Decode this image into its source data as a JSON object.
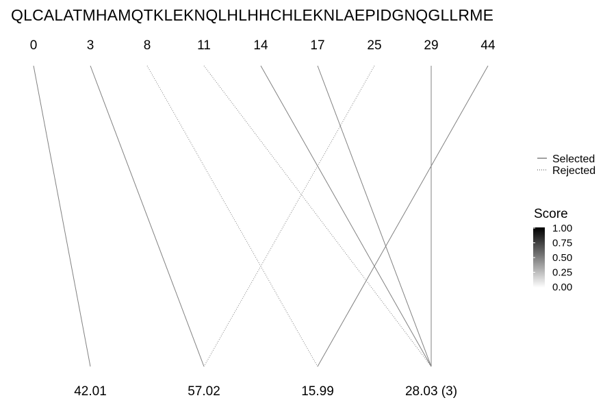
{
  "sequence": "QLCALATMHAMQTKLEKNQLHLHHCHLEKNLAEPIDGNQGLLRME",
  "top_labels": [
    "0",
    "3",
    "8",
    "11",
    "14",
    "17",
    "25",
    "29",
    "44"
  ],
  "bottom_labels": [
    "42.01",
    "57.02",
    "15.99",
    "28.03 (3)"
  ],
  "links": [
    {
      "from": 0,
      "to": 0,
      "status": "selected"
    },
    {
      "from": 1,
      "to": 1,
      "status": "selected"
    },
    {
      "from": 2,
      "to": 2,
      "status": "rejected"
    },
    {
      "from": 3,
      "to": 3,
      "status": "rejected"
    },
    {
      "from": 4,
      "to": 3,
      "status": "selected"
    },
    {
      "from": 5,
      "to": 3,
      "status": "selected"
    },
    {
      "from": 6,
      "to": 1,
      "status": "rejected"
    },
    {
      "from": 7,
      "to": 3,
      "status": "selected"
    },
    {
      "from": 8,
      "to": 2,
      "status": "selected"
    }
  ],
  "legend": {
    "selected_label": "Selected",
    "rejected_label": "Rejected"
  },
  "score_scale": {
    "title": "Score",
    "ticks": [
      "1.00",
      "0.75",
      "0.50",
      "0.25",
      "0.00"
    ],
    "color_high": "#000000",
    "color_low": "#ffffff"
  },
  "colors": {
    "line": "#808080",
    "text": "#000000"
  }
}
